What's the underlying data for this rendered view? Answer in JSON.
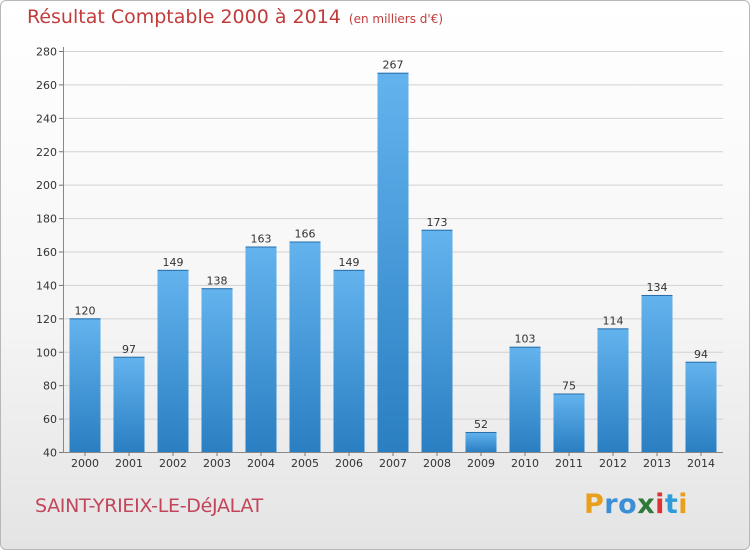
{
  "title": "Résultat Comptable 2000 à 2014",
  "unit": "(en milliers d'€)",
  "commune": "SAINT-YRIEIX-LE-DéJALAT",
  "brand": {
    "letters": [
      "P",
      "r",
      "o",
      "x",
      "i",
      "t",
      "i"
    ],
    "colors": [
      "#e8a01c",
      "#3b8fd6",
      "#3b8fd6",
      "#2f7a3a",
      "#e03030",
      "#2f9bd8",
      "#e8a01c"
    ]
  },
  "colors": {
    "bar_top": "#63b3ee",
    "bar_bottom": "#2a7fc2",
    "title": "#c23b3b",
    "commune": "#c2455a"
  },
  "chart_data": {
    "type": "bar",
    "title": "Résultat Comptable 2000 à 2014",
    "subtitle": "(en milliers d'€)",
    "xlabel": "",
    "ylabel": "",
    "categories": [
      "2000",
      "2001",
      "2002",
      "2003",
      "2004",
      "2005",
      "2006",
      "2007",
      "2008",
      "2009",
      "2010",
      "2011",
      "2012",
      "2013",
      "2014"
    ],
    "values": [
      120,
      97,
      149,
      138,
      163,
      166,
      149,
      267,
      173,
      52,
      103,
      75,
      114,
      134,
      94
    ],
    "ylim": [
      40,
      280
    ],
    "yticks": [
      40,
      60,
      80,
      100,
      120,
      140,
      160,
      180,
      200,
      220,
      240,
      260,
      280
    ],
    "grid": true
  }
}
